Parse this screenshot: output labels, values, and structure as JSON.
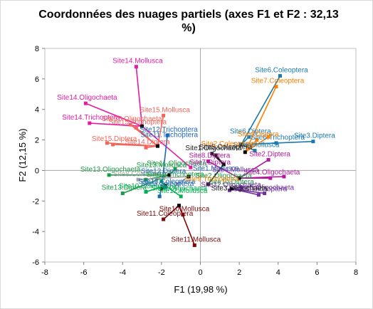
{
  "chart_data": {
    "type": "scatter",
    "title_line1": "Coordonnées des nuages partiels (axes F1 et F2 : 32,13",
    "title_line2": "%)",
    "xlabel": "F1 (19,98 %)",
    "ylabel": "F2 (12,15 %)",
    "xlim": [
      -8,
      8
    ],
    "ylim": [
      -6,
      8
    ],
    "xticks": [
      -8,
      -6,
      -4,
      -2,
      0,
      2,
      4,
      6,
      8
    ],
    "yticks": [
      -6,
      -4,
      -2,
      0,
      2,
      4,
      6,
      8
    ],
    "grid": false,
    "groups": [
      {
        "color": "#e31ba6",
        "center": [
          -3.0,
          2.9
        ],
        "points": [
          {
            "label": "Site14.Mollusca",
            "x": -3.3,
            "y": 6.8
          },
          {
            "label": "Site14.Trichoptera",
            "x": -5.7,
            "y": 3.1
          },
          {
            "label": "Site14.Oligochaeta",
            "x": -5.9,
            "y": 4.4
          },
          {
            "label": "",
            "x": -0.5,
            "y": 0.2
          }
        ]
      },
      {
        "color": "#f4645a",
        "center": [
          -2.2,
          1.6
        ],
        "points": [
          {
            "label": "Site15.Mollusca",
            "x": -1.9,
            "y": 3.6
          },
          {
            "label": "Site15.Oligochaeta",
            "x": -3.6,
            "y": 3.0
          },
          {
            "label": "Site15.Trichoptera",
            "x": -3.3,
            "y": 2.8
          },
          {
            "label": "Site15.Diptera",
            "x": -4.5,
            "y": 1.7
          },
          {
            "label": "Site14.Diptera",
            "x": -2.8,
            "y": 1.5
          },
          {
            "label": "",
            "x": -4.8,
            "y": 1.8
          }
        ]
      },
      {
        "color": "#1f9a48",
        "center": [
          -1.6,
          -0.3
        ],
        "points": [
          {
            "label": "Site13.Oligochaeta",
            "x": -4.7,
            "y": -0.3
          },
          {
            "label": "Site13.Diptera",
            "x": -4.0,
            "y": -1.5
          },
          {
            "label": "Site11.Oligochaeta",
            "x": -1.3,
            "y": 0.1
          },
          {
            "label": "",
            "x": -2.8,
            "y": -0.6
          }
        ]
      },
      {
        "color": "#00b050",
        "center": [
          -1.8,
          -1.0
        ],
        "points": [
          {
            "label": "Site10.Coleoptera",
            "x": -2.8,
            "y": -1.4
          },
          {
            "label": "Site12.Mollusca",
            "x": -1.0,
            "y": -1.7
          },
          {
            "label": "",
            "x": -2.0,
            "y": -0.7
          }
        ]
      },
      {
        "color": "#1d66b8",
        "center": [
          -2.0,
          -1.2
        ],
        "points": [
          {
            "label": "Site12.Trichoptera",
            "x": -1.7,
            "y": 2.3
          },
          {
            "label": "Site13.Coleoptera",
            "x": -1.8,
            "y": -1.1
          },
          {
            "label": "",
            "x": -2.1,
            "y": -1.7
          }
        ]
      },
      {
        "color": "#7a0a0a",
        "center": [
          -1.1,
          -2.3
        ],
        "points": [
          {
            "label": "Site11.Mollusca",
            "x": -0.3,
            "y": -4.9
          },
          {
            "label": "Site11.Coleoptera",
            "x": -1.9,
            "y": -3.2
          },
          {
            "label": "Site10.Mollusca",
            "x": -0.9,
            "y": -2.9
          }
        ]
      },
      {
        "color": "#1a7aad",
        "center": [
          2.1,
          1.7
        ],
        "points": [
          {
            "label": "Site6.Coleoptera",
            "x": 4.1,
            "y": 6.2
          },
          {
            "label": "Site6.Diptera",
            "x": 2.5,
            "y": 2.2
          },
          {
            "label": "Site6.Trichoptera",
            "x": 3.9,
            "y": 1.8
          },
          {
            "label": "Site3.Diptera",
            "x": 5.8,
            "y": 1.9
          },
          {
            "label": "Site6.Mollusca",
            "x": 2.8,
            "y": 1.3
          }
        ]
      },
      {
        "color": "#ff7f00",
        "center": [
          2.3,
          1.2
        ],
        "points": [
          {
            "label": "Site7.Coleoptera",
            "x": 3.9,
            "y": 5.5
          },
          {
            "label": "Site4.Diptera",
            "x": 2.9,
            "y": 2.0
          },
          {
            "label": "",
            "x": 3.5,
            "y": 2.2
          }
        ]
      },
      {
        "color": "#b5179e",
        "center": [
          2.0,
          -0.5
        ],
        "points": [
          {
            "label": "Site2.Diptera",
            "x": 3.5,
            "y": 0.7
          },
          {
            "label": "Site4.Oligochaeta",
            "x": 3.6,
            "y": -0.5
          },
          {
            "label": "Site8.Diptera",
            "x": 0.4,
            "y": 0.6
          },
          {
            "label": "",
            "x": 4.3,
            "y": -0.4
          }
        ]
      },
      {
        "color": "#7030a0",
        "center": [
          1.6,
          -1.2
        ],
        "points": [
          {
            "label": "Site5.Trichoptera",
            "x": 3.0,
            "y": -1.6
          },
          {
            "label": "Site12.Oligochaeta",
            "x": 1.5,
            "y": -1.3
          },
          {
            "label": "Site5.Oligochaeta",
            "x": 3.3,
            "y": -1.5
          },
          {
            "label": "",
            "x": 2.1,
            "y": -1.1
          }
        ]
      },
      {
        "color": "#1a1a1a",
        "center": [
          1.2,
          0.4
        ],
        "points": [
          {
            "label": "Site1.Oligochaeta",
            "x": 0.6,
            "y": 1.1
          },
          {
            "label": "",
            "x": 0.8,
            "y": 1.0
          },
          {
            "label": "",
            "x": 0.4,
            "y": -0.9
          }
        ]
      },
      {
        "color": "#a6a6a6",
        "center": [
          -0.6,
          -0.4
        ],
        "points": [
          {
            "label": "Site8.Coleoptera",
            "x": -3.2,
            "y": -0.6
          },
          {
            "label": "",
            "x": -1.2,
            "y": -0.9
          }
        ]
      }
    ],
    "extra_labels": [
      {
        "text": "Site13.Mollusca",
        "x": -2.0,
        "y": 0.2,
        "color": "#1f9a48"
      },
      {
        "text": "Site12.Diptera",
        "x": -1.9,
        "y": -0.2,
        "color": "#1d66b8"
      },
      {
        "text": "Site9.Coleoptera",
        "x": -1.7,
        "y": -1.0,
        "color": "#1d66b8"
      },
      {
        "text": "Site7.Diptera",
        "x": 0.5,
        "y": 0.4,
        "color": "#b5179e"
      },
      {
        "text": "Site1.Mollusca",
        "x": 0.8,
        "y": 0.0,
        "color": "#1d66b8"
      },
      {
        "text": "Site2.Oligochaeta",
        "x": 1.2,
        "y": -0.5,
        "color": "#1f9a48"
      },
      {
        "text": "Site10.Diptera",
        "x": 1.6,
        "y": -0.9,
        "color": "#1f9a48"
      },
      {
        "text": "Site3.Oligochaeta",
        "x": 2.0,
        "y": -1.3,
        "color": "#1a1a1a"
      },
      {
        "text": "Site4.Mollusca",
        "x": 1.8,
        "y": -0.1,
        "color": "#7030a0"
      },
      {
        "text": "Site9.Trichoptera",
        "x": 0.6,
        "y": -0.7,
        "color": "#ff7f00"
      },
      {
        "text": "Site10.Trichoptera",
        "x": -1.3,
        "y": -0.4,
        "color": "#1f9a48"
      },
      {
        "text": "Site9.Oligochaeta",
        "x": -1.1,
        "y": -1.3,
        "color": "#00b050"
      },
      {
        "text": "Site11.Trichoptera",
        "x": -1.6,
        "y": 2.2,
        "color": "#1d66b8"
      },
      {
        "text": "Site2.Coleoptera",
        "x": 1.4,
        "y": 1.6,
        "color": "#ff7f00"
      },
      {
        "text": "Site5.Coleoptera",
        "x": 1.3,
        "y": 1.4,
        "color": "#1a1a1a"
      }
    ]
  }
}
